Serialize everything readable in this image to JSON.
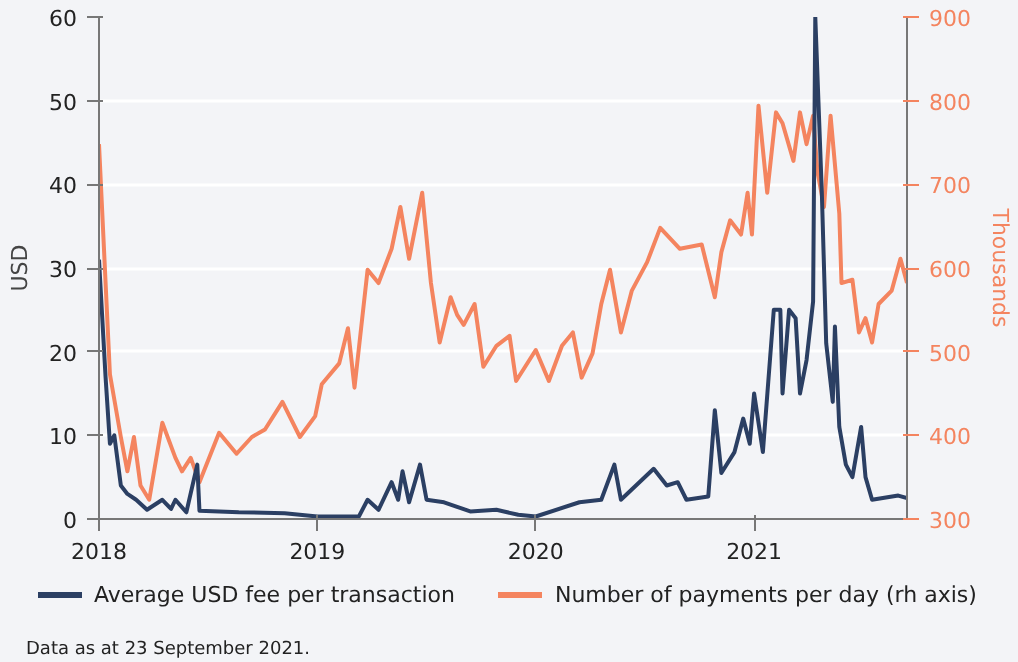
{
  "chart_data": {
    "type": "line",
    "xlabel": null,
    "ylabel": "USD",
    "y2label": "Thousands",
    "xlim": [
      2018,
      2021.7
    ],
    "xticks": [
      2018,
      2019,
      2020,
      2021
    ],
    "ylim": [
      0,
      60
    ],
    "yticks": [
      0,
      10,
      20,
      30,
      40,
      50,
      60
    ],
    "y2lim": [
      300,
      900
    ],
    "y2ticks": [
      300,
      400,
      500,
      600,
      700,
      800,
      900
    ],
    "grid": "y",
    "legend": "bottom",
    "line_style": "solid",
    "annotations": [
      "Data as at 23 September 2021."
    ],
    "series": [
      {
        "name": "Average USD fee per transaction",
        "color": "#2b3f63",
        "x": [
          2018.0,
          2018.03,
          2018.05,
          2018.07,
          2018.1,
          2018.13,
          2018.17,
          2018.22,
          2018.29,
          2018.33,
          2018.35,
          2018.4,
          2018.45,
          2018.46,
          2018.64,
          2018.85,
          2019.0,
          2019.19,
          2019.23,
          2019.28,
          2019.34,
          2019.37,
          2019.39,
          2019.42,
          2019.47,
          2019.5,
          2019.58,
          2019.7,
          2019.82,
          2019.92,
          2020.0,
          2020.2,
          2020.3,
          2020.36,
          2020.39,
          2020.54,
          2020.6,
          2020.65,
          2020.69,
          2020.79,
          2020.82,
          2020.85,
          2020.91,
          2020.95,
          2020.98,
          2021.0,
          2021.04,
          2021.09,
          2021.12,
          2021.13,
          2021.16,
          2021.19,
          2021.21,
          2021.24,
          2021.27,
          2021.28,
          2021.31,
          2021.33,
          2021.36,
          2021.37,
          2021.39,
          2021.42,
          2021.45,
          2021.49,
          2021.51,
          2021.54,
          2021.66,
          2021.7
        ],
        "values": [
          31,
          17,
          9,
          10,
          4,
          3,
          2.3,
          1.1,
          2.3,
          1.2,
          2.3,
          0.8,
          6.5,
          1,
          0.8,
          0.7,
          0.3,
          0.3,
          2.3,
          1.1,
          4.4,
          2.3,
          5.7,
          2,
          6.5,
          2.3,
          2,
          0.9,
          1.1,
          0.5,
          0.3,
          2,
          2.3,
          6.5,
          2.3,
          6,
          4,
          4.4,
          2.3,
          2.7,
          13,
          5.5,
          8,
          12,
          9,
          15,
          8,
          25,
          25,
          15,
          25,
          24,
          15,
          19,
          26,
          60,
          39,
          21,
          14,
          23,
          11,
          6.5,
          5,
          11,
          5,
          2.3,
          2.8,
          2.5
        ]
      },
      {
        "name": "Number of payments per day (rh axis)",
        "color": "#f4845f",
        "axis": "y2",
        "x": [
          2018.0,
          2018.05,
          2018.1,
          2018.13,
          2018.16,
          2018.19,
          2018.23,
          2018.29,
          2018.35,
          2018.38,
          2018.42,
          2018.46,
          2018.55,
          2018.63,
          2018.7,
          2018.76,
          2018.84,
          2018.92,
          2018.99,
          2019.02,
          2019.1,
          2019.14,
          2019.17,
          2019.23,
          2019.28,
          2019.34,
          2019.38,
          2019.42,
          2019.48,
          2019.52,
          2019.56,
          2019.61,
          2019.64,
          2019.67,
          2019.72,
          2019.76,
          2019.82,
          2019.88,
          2019.91,
          2020.0,
          2020.06,
          2020.12,
          2020.17,
          2020.21,
          2020.26,
          2020.3,
          2020.34,
          2020.39,
          2020.44,
          2020.51,
          2020.57,
          2020.66,
          2020.76,
          2020.82,
          2020.85,
          2020.89,
          2020.94,
          2020.97,
          2020.99,
          2021.02,
          2021.06,
          2021.1,
          2021.13,
          2021.18,
          2021.21,
          2021.24,
          2021.27,
          2021.29,
          2021.32,
          2021.35,
          2021.39,
          2021.4,
          2021.45,
          2021.48,
          2021.51,
          2021.54,
          2021.57,
          2021.63,
          2021.67,
          2021.7
        ],
        "values": [
          748,
          473,
          398,
          357,
          398,
          340,
          323,
          415,
          373,
          357,
          373,
          344,
          403,
          378,
          398,
          407,
          440,
          398,
          423,
          461,
          486,
          528,
          457,
          598,
          582,
          623,
          673,
          611,
          690,
          582,
          511,
          565,
          544,
          532,
          557,
          482,
          507,
          519,
          465,
          502,
          465,
          507,
          523,
          469,
          498,
          557,
          598,
          523,
          573,
          607,
          648,
          623,
          628,
          565,
          619,
          657,
          640,
          690,
          640,
          794,
          690,
          786,
          773,
          728,
          786,
          748,
          782,
          715,
          673,
          782,
          665,
          582,
          586,
          523,
          540,
          511,
          557,
          573,
          611,
          582
        ]
      }
    ]
  }
}
